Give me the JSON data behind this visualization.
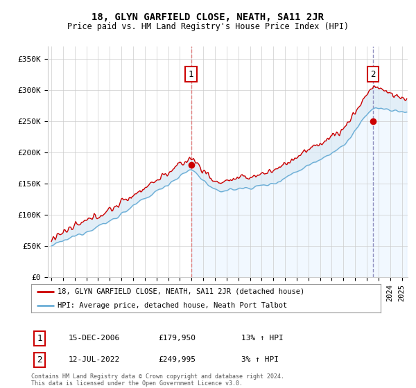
{
  "title": "18, GLYN GARFIELD CLOSE, NEATH, SA11 2JR",
  "subtitle": "Price paid vs. HM Land Registry's House Price Index (HPI)",
  "ylabel_ticks": [
    "£0",
    "£50K",
    "£100K",
    "£150K",
    "£200K",
    "£250K",
    "£300K",
    "£350K"
  ],
  "ytick_values": [
    0,
    50000,
    100000,
    150000,
    200000,
    250000,
    300000,
    350000
  ],
  "ylim": [
    0,
    370000
  ],
  "xlim_start": 1994.7,
  "xlim_end": 2025.5,
  "hpi_color": "#6baed6",
  "hpi_fill_color": "#d6e8f5",
  "price_color": "#cc0000",
  "marker1_x": 2006.96,
  "marker1_y": 179950,
  "marker2_x": 2022.53,
  "marker2_y": 249995,
  "vline1_color": "#e08080",
  "vline2_color": "#9090c0",
  "shade_color": "#ddeeff",
  "shade_alpha": 0.5,
  "legend_property_label": "18, GLYN GARFIELD CLOSE, NEATH, SA11 2JR (detached house)",
  "legend_hpi_label": "HPI: Average price, detached house, Neath Port Talbot",
  "marker1_date": "15-DEC-2006",
  "marker1_price": "£179,950",
  "marker1_hpi": "13% ↑ HPI",
  "marker2_date": "12-JUL-2022",
  "marker2_price": "£249,995",
  "marker2_hpi": "3% ↑ HPI",
  "footer": "Contains HM Land Registry data © Crown copyright and database right 2024.\nThis data is licensed under the Open Government Licence v3.0.",
  "background_color": "#ffffff",
  "grid_color": "#cccccc"
}
